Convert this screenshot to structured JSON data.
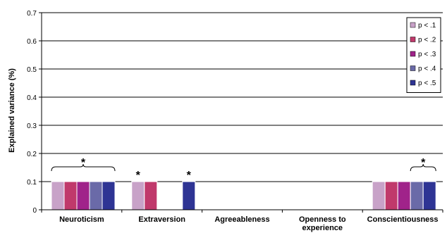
{
  "chart_data": {
    "type": "bar",
    "categories": [
      "Neuroticism",
      "Extraversion",
      "Agreeableness",
      "Openness to experience",
      "Conscientiousness"
    ],
    "category_lines": [
      [
        "Neuroticism"
      ],
      [
        "Extraversion"
      ],
      [
        "Agreeableness"
      ],
      [
        "Openness to",
        "experience"
      ],
      [
        "Conscientiousness"
      ]
    ],
    "series": [
      {
        "name": "p < .1",
        "color": "#c8a2c8",
        "values": [
          0.1,
          0.1,
          0,
          0,
          0.1
        ]
      },
      {
        "name": "p < .2",
        "color": "#c0396b",
        "values": [
          0.1,
          0.1,
          0,
          0,
          0.1
        ]
      },
      {
        "name": "p < .3",
        "color": "#a0238a",
        "values": [
          0.1,
          0,
          0,
          0,
          0.1
        ]
      },
      {
        "name": "p < .4",
        "color": "#6a6aa8",
        "values": [
          0.1,
          0,
          0,
          0,
          0.1
        ]
      },
      {
        "name": "p < .5",
        "color": "#2e3494",
        "values": [
          0.1,
          0.1,
          0,
          0,
          0.1
        ]
      }
    ],
    "ylabel": "Explained variance (%)",
    "ylim": [
      0,
      0.7
    ],
    "yticks": [
      "0",
      "0.1",
      "0.2",
      "0.3",
      "0.4",
      "0.5",
      "0.6",
      "0.7"
    ],
    "grid": true,
    "legend": "top-right",
    "annotations": [
      {
        "text": "*",
        "category": 0,
        "type": "bracket",
        "series_from": 0,
        "series_to": 4
      },
      {
        "text": "*",
        "category": 1,
        "type": "single",
        "series": 0
      },
      {
        "text": "*",
        "category": 1,
        "type": "single",
        "series": 4
      },
      {
        "text": "*",
        "category": 4,
        "type": "bracket",
        "series_from": 3,
        "series_to": 4
      }
    ]
  }
}
